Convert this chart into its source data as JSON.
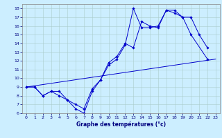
{
  "xlabel": "Graphe des températures (°c)",
  "bg_color": "#cceeff",
  "line_color": "#0000cc",
  "grid_color": "#aacccc",
  "xlim": [
    -0.5,
    23.5
  ],
  "ylim": [
    6,
    18.5
  ],
  "yticks": [
    6,
    7,
    8,
    9,
    10,
    11,
    12,
    13,
    14,
    15,
    16,
    17,
    18
  ],
  "xticks": [
    0,
    1,
    2,
    3,
    4,
    5,
    6,
    7,
    8,
    9,
    10,
    11,
    12,
    13,
    14,
    15,
    16,
    17,
    18,
    19,
    20,
    21,
    22,
    23
  ],
  "series": [
    {
      "x": [
        0,
        1,
        2,
        3,
        4,
        5,
        6,
        7,
        8,
        9,
        10,
        11,
        12,
        13,
        14,
        15,
        16,
        17,
        18,
        19,
        20,
        22
      ],
      "y": [
        9,
        9,
        8,
        8.5,
        8,
        7.5,
        6.5,
        6,
        8.5,
        9.8,
        11.5,
        12.2,
        13.8,
        18,
        15.8,
        15.8,
        16,
        17.8,
        17.5,
        17,
        15,
        12.2
      ]
    },
    {
      "x": [
        0,
        1,
        2,
        3,
        4,
        5,
        6,
        7,
        8,
        9,
        10,
        11,
        12,
        13,
        14,
        15,
        16,
        17,
        18,
        19,
        20,
        21,
        22
      ],
      "y": [
        9,
        9,
        8,
        8.5,
        8.5,
        7.5,
        7,
        6.5,
        8.8,
        9.8,
        11.8,
        12.5,
        14,
        13.5,
        16.5,
        16,
        15.8,
        17.8,
        17.8,
        17,
        17,
        15,
        13.5
      ]
    },
    {
      "x": [
        0,
        23
      ],
      "y": [
        9,
        12.2
      ]
    }
  ]
}
